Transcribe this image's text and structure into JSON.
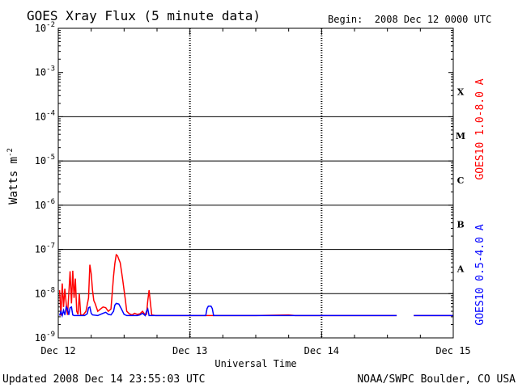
{
  "chart_data": {
    "type": "line",
    "title": "GOES Xray Flux (5 minute data)",
    "begin_label": "Begin:  2008 Dec 12 0000 UTC",
    "ylabel": "Watts m",
    "ylabel_exp": "-2",
    "xlabel": "Universal Time",
    "y_scale": "log",
    "ylim": [
      1e-09,
      0.01
    ],
    "y_ticks": [
      {
        "base": "10",
        "exp": "-9"
      },
      {
        "base": "10",
        "exp": "-8"
      },
      {
        "base": "10",
        "exp": "-7"
      },
      {
        "base": "10",
        "exp": "-6"
      },
      {
        "base": "10",
        "exp": "-5"
      },
      {
        "base": "10",
        "exp": "-4"
      },
      {
        "base": "10",
        "exp": "-3"
      },
      {
        "base": "10",
        "exp": "-2"
      }
    ],
    "x_unit": "days since 2008 Dec 12 0000 UTC",
    "xlim": [
      0,
      3
    ],
    "x_ticks": [
      "Dec 12",
      "Dec 13",
      "Dec 14",
      "Dec 15"
    ],
    "flare_classes": [
      {
        "label": "A",
        "level": 1e-08
      },
      {
        "label": "B",
        "level": 1e-07
      },
      {
        "label": "C",
        "level": 1e-06
      },
      {
        "label": "M",
        "level": 1e-05
      },
      {
        "label": "X",
        "level": 0.0001
      }
    ],
    "grid": true,
    "series": [
      {
        "name": "GOES10 1.0-8.0 A",
        "color": "#ff0000",
        "points": [
          [
            0.01,
            1.2e-08
          ],
          [
            0.02,
            3.2e-09
          ],
          [
            0.03,
            1.7e-08
          ],
          [
            0.04,
            5e-09
          ],
          [
            0.05,
            1.3e-08
          ],
          [
            0.06,
            6e-09
          ],
          [
            0.07,
            3.3e-09
          ],
          [
            0.08,
            1e-08
          ],
          [
            0.09,
            3.2e-08
          ],
          [
            0.1,
            6e-09
          ],
          [
            0.11,
            3.3e-08
          ],
          [
            0.12,
            8e-09
          ],
          [
            0.13,
            2.2e-08
          ],
          [
            0.14,
            4e-09
          ],
          [
            0.15,
            3.4e-09
          ],
          [
            0.16,
            1e-08
          ],
          [
            0.17,
            3.3e-09
          ],
          [
            0.19,
            3.3e-09
          ],
          [
            0.21,
            4e-09
          ],
          [
            0.23,
            8e-09
          ],
          [
            0.24,
            4.5e-08
          ],
          [
            0.25,
            2.8e-08
          ],
          [
            0.26,
            1.2e-08
          ],
          [
            0.27,
            7e-09
          ],
          [
            0.28,
            6e-09
          ],
          [
            0.3,
            4e-09
          ],
          [
            0.32,
            4.5e-09
          ],
          [
            0.34,
            5e-09
          ],
          [
            0.36,
            4.8e-09
          ],
          [
            0.38,
            4e-09
          ],
          [
            0.4,
            4.5e-09
          ],
          [
            0.42,
            2.5e-08
          ],
          [
            0.43,
            4.8e-08
          ],
          [
            0.44,
            7.6e-08
          ],
          [
            0.45,
            7.2e-08
          ],
          [
            0.46,
            6e-08
          ],
          [
            0.47,
            5e-08
          ],
          [
            0.48,
            3.2e-08
          ],
          [
            0.49,
            2e-08
          ],
          [
            0.5,
            1.2e-08
          ],
          [
            0.51,
            7e-09
          ],
          [
            0.52,
            4e-09
          ],
          [
            0.54,
            3.5e-09
          ],
          [
            0.56,
            3.3e-09
          ],
          [
            0.58,
            3.6e-09
          ],
          [
            0.6,
            3.4e-09
          ],
          [
            0.62,
            3.5e-09
          ],
          [
            0.64,
            4e-09
          ],
          [
            0.66,
            3.3e-09
          ],
          [
            0.67,
            3.4e-09
          ],
          [
            0.68,
            7e-09
          ],
          [
            0.69,
            1.2e-08
          ],
          [
            0.7,
            6e-09
          ],
          [
            0.71,
            3.3e-09
          ],
          [
            0.74,
            3.2e-09
          ],
          [
            0.8,
            3.2e-09
          ],
          [
            1.0,
            3.2e-09
          ],
          [
            1.3,
            3.2e-09
          ],
          [
            1.5,
            3.2e-09
          ],
          [
            1.75,
            3.3e-09
          ],
          [
            1.8,
            3.2e-09
          ],
          [
            2.0,
            3.2e-09
          ],
          [
            2.25,
            3.2e-09
          ],
          [
            2.57,
            3.2e-09
          ]
        ],
        "points_after_gap": [
          [
            2.7,
            3.2e-09
          ],
          [
            3.0,
            3.2e-09
          ]
        ]
      },
      {
        "name": "GOES10 0.5-4.0 A",
        "color": "#0000ff",
        "points": [
          [
            0.01,
            3.2e-09
          ],
          [
            0.02,
            4e-09
          ],
          [
            0.03,
            3.2e-09
          ],
          [
            0.04,
            4.2e-09
          ],
          [
            0.05,
            3.3e-09
          ],
          [
            0.06,
            5e-09
          ],
          [
            0.07,
            4.5e-09
          ],
          [
            0.08,
            3.3e-09
          ],
          [
            0.09,
            4.8e-09
          ],
          [
            0.1,
            5e-09
          ],
          [
            0.11,
            3.3e-09
          ],
          [
            0.12,
            3.2e-09
          ],
          [
            0.14,
            3.2e-09
          ],
          [
            0.18,
            3.2e-09
          ],
          [
            0.2,
            3.2e-09
          ],
          [
            0.22,
            3.5e-09
          ],
          [
            0.23,
            4.8e-09
          ],
          [
            0.24,
            5e-09
          ],
          [
            0.25,
            3.6e-09
          ],
          [
            0.26,
            3.3e-09
          ],
          [
            0.3,
            3.2e-09
          ],
          [
            0.34,
            3.6e-09
          ],
          [
            0.36,
            3.8e-09
          ],
          [
            0.38,
            3.4e-09
          ],
          [
            0.4,
            3.3e-09
          ],
          [
            0.42,
            4e-09
          ],
          [
            0.43,
            5.5e-09
          ],
          [
            0.44,
            6e-09
          ],
          [
            0.46,
            5.8e-09
          ],
          [
            0.48,
            4.5e-09
          ],
          [
            0.5,
            3.4e-09
          ],
          [
            0.52,
            3.2e-09
          ],
          [
            0.56,
            3.2e-09
          ],
          [
            0.6,
            3.2e-09
          ],
          [
            0.62,
            3.3e-09
          ],
          [
            0.64,
            3.6e-09
          ],
          [
            0.66,
            3.2e-09
          ],
          [
            0.67,
            4e-09
          ],
          [
            0.68,
            4.5e-09
          ],
          [
            0.69,
            3.2e-09
          ],
          [
            0.71,
            3.2e-09
          ],
          [
            0.74,
            3.2e-09
          ],
          [
            1.0,
            3.2e-09
          ],
          [
            1.12,
            3.2e-09
          ],
          [
            1.13,
            4.6e-09
          ],
          [
            1.14,
            5.2e-09
          ],
          [
            1.16,
            5.2e-09
          ],
          [
            1.17,
            4.6e-09
          ],
          [
            1.18,
            3.2e-09
          ],
          [
            1.5,
            3.2e-09
          ],
          [
            2.0,
            3.2e-09
          ],
          [
            2.57,
            3.2e-09
          ]
        ],
        "points_after_gap": [
          [
            2.7,
            3.2e-09
          ],
          [
            3.0,
            3.2e-09
          ]
        ]
      }
    ]
  },
  "footer": {
    "updated": "Updated 2008 Dec 14 23:55:03 UTC",
    "source": "NOAA/SWPC Boulder, CO USA"
  }
}
